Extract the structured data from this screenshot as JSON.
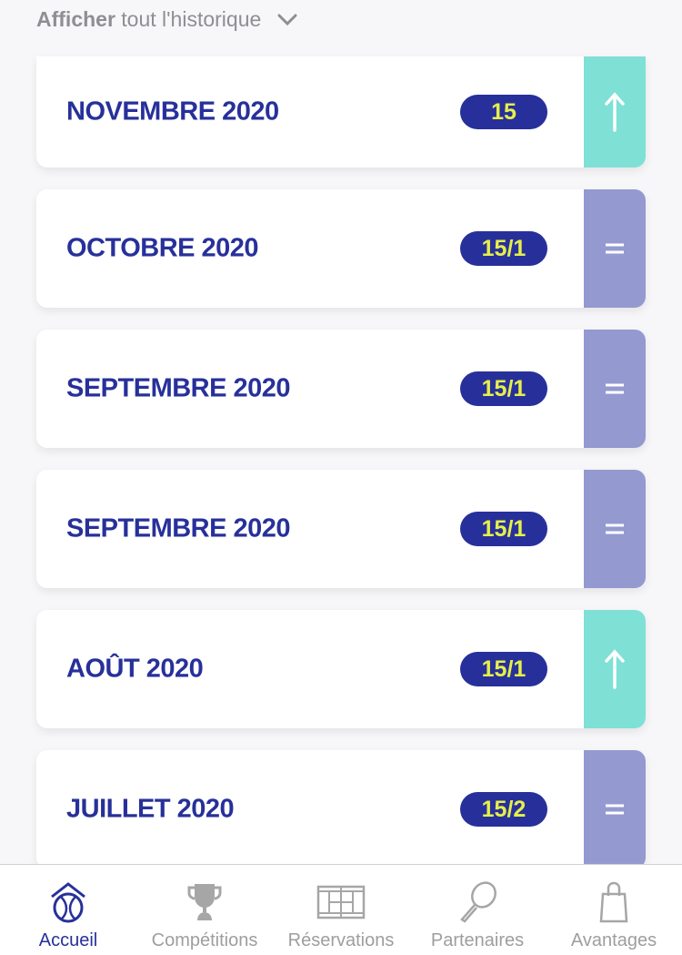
{
  "history_link": {
    "bold": "Afficher",
    "rest": "tout l'historique"
  },
  "colors": {
    "up": "#7fe0d6",
    "equal": "#9499d0",
    "badge_bg": "#27309a",
    "badge_text": "#e6ef4a",
    "title": "#27309a"
  },
  "rankings": [
    {
      "month": "NOVEMBRE 2020",
      "rank": "15",
      "trend": "up"
    },
    {
      "month": "OCTOBRE 2020",
      "rank": "15/1",
      "trend": "equal"
    },
    {
      "month": "SEPTEMBRE 2020",
      "rank": "15/1",
      "trend": "equal"
    },
    {
      "month": "SEPTEMBRE 2020",
      "rank": "15/1",
      "trend": "equal"
    },
    {
      "month": "AOÛT 2020",
      "rank": "15/1",
      "trend": "up"
    },
    {
      "month": "JUILLET 2020",
      "rank": "15/2",
      "trend": "equal"
    }
  ],
  "tabbar": [
    {
      "label": "Accueil",
      "icon": "home-ball-icon",
      "active": true
    },
    {
      "label": "Compétitions",
      "icon": "trophy-icon"
    },
    {
      "label": "Réservations",
      "icon": "court-icon"
    },
    {
      "label": "Partenaires",
      "icon": "racket-icon"
    },
    {
      "label": "Avantages",
      "icon": "shopping-bag-icon"
    }
  ]
}
